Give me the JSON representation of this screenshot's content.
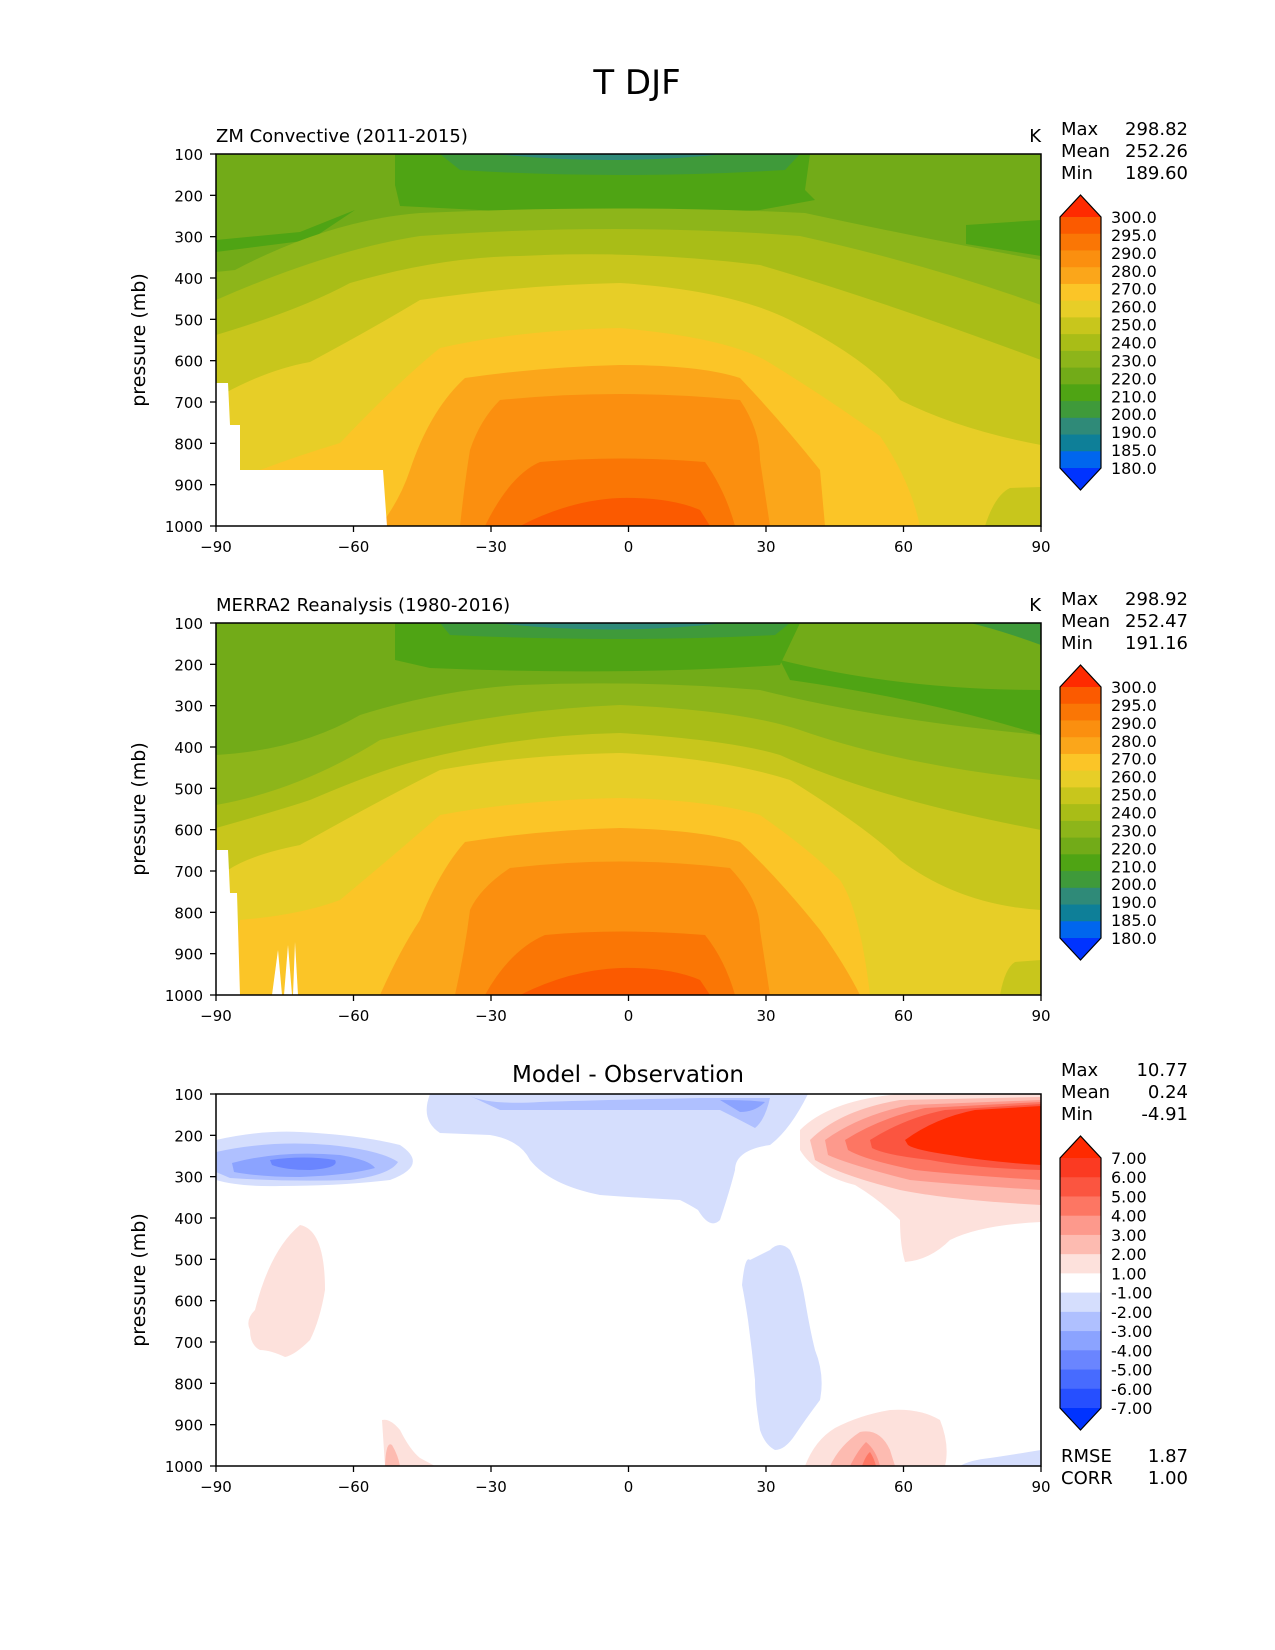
{
  "figure": {
    "title": "T DJF"
  },
  "colors": {
    "temperature_levels": [
      "#0033ff",
      "#0066ee",
      "#0e7f98",
      "#2f8a78",
      "#3f9a3a",
      "#4fa414",
      "#72ab18",
      "#8db51a",
      "#a9bd17",
      "#c8c61c",
      "#e7ce27",
      "#fbc527",
      "#fba61a",
      "#fb8f0f",
      "#fa7605",
      "#fb5a00",
      "#ff2a00"
    ],
    "difference_levels": [
      "#0033ff",
      "#264fff",
      "#476bff",
      "#6a85ff",
      "#8ba3ff",
      "#afc0ff",
      "#d5defd",
      "#ffffff",
      "#fde1dc",
      "#fdbbb1",
      "#fd998c",
      "#fd7663",
      "#fb5540",
      "#fb3a22",
      "#ff2a00"
    ]
  },
  "chart_data": [
    {
      "type": "contour",
      "title": "ZM Convective (2011-2015)",
      "units": "K",
      "ylabel": "pressure (mb)",
      "xlim": [
        -90,
        90
      ],
      "ylim": [
        1000,
        100
      ],
      "x_ticks": [
        "−90",
        "−60",
        "−30",
        "0",
        "30",
        "60",
        "90"
      ],
      "y_ticks": [
        "100",
        "200",
        "300",
        "400",
        "500",
        "600",
        "700",
        "800",
        "900",
        "1000"
      ],
      "stats": [
        {
          "label": "Max",
          "value": "298.82"
        },
        {
          "label": "Mean",
          "value": "252.26"
        },
        {
          "label": "Min",
          "value": "189.60"
        }
      ],
      "colorbar_levels": [
        "300.0",
        "295.0",
        "290.0",
        "280.0",
        "270.0",
        "260.0",
        "250.0",
        "240.0",
        "230.0",
        "220.0",
        "210.0",
        "200.0",
        "190.0",
        "185.0",
        "180.0"
      ]
    },
    {
      "type": "contour",
      "title": "MERRA2 Reanalysis (1980-2016)",
      "units": "K",
      "ylabel": "pressure (mb)",
      "xlim": [
        -90,
        90
      ],
      "ylim": [
        1000,
        100
      ],
      "x_ticks": [
        "−90",
        "−60",
        "−30",
        "0",
        "30",
        "60",
        "90"
      ],
      "y_ticks": [
        "100",
        "200",
        "300",
        "400",
        "500",
        "600",
        "700",
        "800",
        "900",
        "1000"
      ],
      "stats": [
        {
          "label": "Max",
          "value": "298.92"
        },
        {
          "label": "Mean",
          "value": "252.47"
        },
        {
          "label": "Min",
          "value": "191.16"
        }
      ],
      "colorbar_levels": [
        "300.0",
        "295.0",
        "290.0",
        "280.0",
        "270.0",
        "260.0",
        "250.0",
        "240.0",
        "230.0",
        "220.0",
        "210.0",
        "200.0",
        "190.0",
        "185.0",
        "180.0"
      ]
    },
    {
      "type": "contour",
      "title": "Model - Observation",
      "ylabel": "pressure (mb)",
      "xlim": [
        -90,
        90
      ],
      "ylim": [
        1000,
        100
      ],
      "x_ticks": [
        "−90",
        "−60",
        "−30",
        "0",
        "30",
        "60",
        "90"
      ],
      "y_ticks": [
        "100",
        "200",
        "300",
        "400",
        "500",
        "600",
        "700",
        "800",
        "900",
        "1000"
      ],
      "stats": [
        {
          "label": "Max",
          "value": "10.77"
        },
        {
          "label": "Mean",
          "value": "0.24"
        },
        {
          "label": "Min",
          "value": "-4.91"
        }
      ],
      "extra_stats": [
        {
          "label": "RMSE",
          "value": "1.87"
        },
        {
          "label": "CORR",
          "value": "1.00"
        }
      ],
      "colorbar_levels": [
        "7.00",
        "6.00",
        "5.00",
        "4.00",
        "3.00",
        "2.00",
        "1.00",
        "-1.00",
        "-2.00",
        "-3.00",
        "-4.00",
        "-5.00",
        "-6.00",
        "-7.00"
      ]
    }
  ]
}
